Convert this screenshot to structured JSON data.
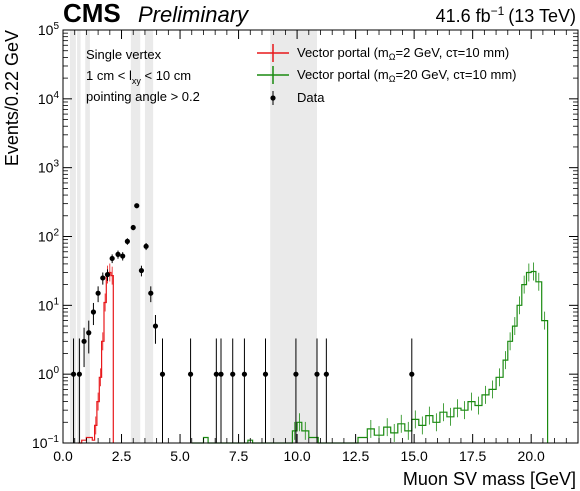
{
  "header": {
    "experiment": "CMS",
    "status": "Preliminary",
    "luminosity": "41.6 fb",
    "luminosity_exp": "−1",
    "energy": "(13 TeV)"
  },
  "annotations": [
    "Single vertex",
    "1 cm < l",
    "xy",
    " < 10 cm",
    "pointing angle > 0.2"
  ],
  "legend": {
    "placement": "top-right",
    "entries": [
      {
        "label_pre": "Vector portal (m",
        "label_sub": "Ω",
        "label_post": "=2 GeV, cτ=10 mm)",
        "color": "#e8181b"
      },
      {
        "label_pre": "Vector portal (m",
        "label_sub": "Ω",
        "label_post": "=20 GeV, cτ=10 mm)",
        "color": "#1a8a10"
      },
      {
        "label_pre": "Data",
        "label_sub": "",
        "label_post": "",
        "color": "#000000"
      }
    ]
  },
  "chart_data": {
    "type": "scatter",
    "xlabel": "Muon SV mass [GeV]",
    "ylabel": "Events/0.22 GeV",
    "xlim": [
      0,
      22
    ],
    "ylim": [
      0.1,
      100000
    ],
    "yscale": "log",
    "x_ticks": [
      "0.0",
      "2.5",
      "5.0",
      "7.5",
      "10.0",
      "12.5",
      "15.0",
      "17.5",
      "20.0"
    ],
    "x_tick_values": [
      0,
      2.5,
      5,
      7.5,
      10,
      12.5,
      15,
      17.5,
      20
    ],
    "y_ticks": [
      0.1,
      1,
      10,
      100,
      1000,
      10000,
      100000
    ],
    "y_tick_labels": [
      [
        "10",
        "−1"
      ],
      [
        "10",
        "0"
      ],
      [
        "10",
        "1"
      ],
      [
        "10",
        "2"
      ],
      [
        "10",
        "3"
      ],
      [
        "10",
        "4"
      ],
      [
        "10",
        "5"
      ]
    ],
    "vetoed_regions": [
      [
        0.3,
        0.55
      ],
      [
        0.6,
        0.75
      ],
      [
        0.95,
        1.15
      ],
      [
        2.9,
        3.3
      ],
      [
        3.5,
        3.85
      ],
      [
        8.85,
        10.85
      ]
    ],
    "series": [
      {
        "name": "Data",
        "color": "#000000",
        "points": [
          {
            "x": 0.45,
            "y": 1
          },
          {
            "x": 0.7,
            "y": 1
          },
          {
            "x": 0.9,
            "y": 3
          },
          {
            "x": 1.1,
            "y": 4
          },
          {
            "x": 1.3,
            "y": 8
          },
          {
            "x": 1.5,
            "y": 15
          },
          {
            "x": 1.7,
            "y": 25
          },
          {
            "x": 1.9,
            "y": 28
          },
          {
            "x": 2.1,
            "y": 48
          },
          {
            "x": 2.35,
            "y": 55
          },
          {
            "x": 2.55,
            "y": 52
          },
          {
            "x": 2.75,
            "y": 85
          },
          {
            "x": 3.0,
            "y": 135
          },
          {
            "x": 3.15,
            "y": 280
          },
          {
            "x": 3.35,
            "y": 32
          },
          {
            "x": 3.55,
            "y": 72
          },
          {
            "x": 3.75,
            "y": 15
          },
          {
            "x": 3.95,
            "y": 5
          },
          {
            "x": 4.25,
            "y": 1
          },
          {
            "x": 5.45,
            "y": 1
          },
          {
            "x": 6.55,
            "y": 1
          },
          {
            "x": 6.75,
            "y": 1
          },
          {
            "x": 7.25,
            "y": 1
          },
          {
            "x": 7.75,
            "y": 1
          },
          {
            "x": 8.65,
            "y": 1
          },
          {
            "x": 9.95,
            "y": 1
          },
          {
            "x": 10.85,
            "y": 1
          },
          {
            "x": 11.25,
            "y": 1
          },
          {
            "x": 14.9,
            "y": 1
          }
        ]
      },
      {
        "name": "Vector portal (mΩ=2 GeV, cτ=10 mm)",
        "color": "#e8181b",
        "step": [
          [
            0.65,
            0.1
          ],
          [
            0.8,
            0.11
          ],
          [
            1.0,
            0.12
          ],
          [
            1.25,
            0.11
          ],
          [
            1.35,
            0.18
          ],
          [
            1.45,
            0.4
          ],
          [
            1.55,
            0.9
          ],
          [
            1.65,
            3.0
          ],
          [
            1.75,
            11
          ],
          [
            1.85,
            28
          ],
          [
            1.95,
            30
          ],
          [
            2.05,
            27
          ],
          [
            2.15,
            0.1
          ]
        ]
      },
      {
        "name": "Vector portal (mΩ=20 GeV, cτ=10 mm)",
        "color": "#1a8a10",
        "step": [
          [
            5.5,
            0.1
          ],
          [
            6.0,
            0.12
          ],
          [
            6.2,
            0.1
          ],
          [
            7.9,
            0.11
          ],
          [
            8.1,
            0.1
          ],
          [
            9.8,
            0.15
          ],
          [
            10.0,
            0.2
          ],
          [
            10.2,
            0.15
          ],
          [
            10.5,
            0.12
          ],
          [
            10.9,
            0.1
          ],
          [
            12.6,
            0.12
          ],
          [
            13.0,
            0.16
          ],
          [
            13.3,
            0.13
          ],
          [
            13.7,
            0.17
          ],
          [
            14.0,
            0.14
          ],
          [
            14.3,
            0.19
          ],
          [
            14.6,
            0.15
          ],
          [
            14.9,
            0.22
          ],
          [
            15.2,
            0.18
          ],
          [
            15.5,
            0.25
          ],
          [
            15.8,
            0.2
          ],
          [
            16.1,
            0.28
          ],
          [
            16.4,
            0.24
          ],
          [
            16.7,
            0.32
          ],
          [
            17.0,
            0.3
          ],
          [
            17.3,
            0.4
          ],
          [
            17.6,
            0.35
          ],
          [
            17.9,
            0.5
          ],
          [
            18.2,
            0.6
          ],
          [
            18.5,
            0.9
          ],
          [
            18.8,
            1.6
          ],
          [
            19.0,
            3.0
          ],
          [
            19.2,
            5.0
          ],
          [
            19.4,
            10
          ],
          [
            19.6,
            20
          ],
          [
            19.8,
            30
          ],
          [
            20.0,
            31
          ],
          [
            20.2,
            22
          ],
          [
            20.45,
            6
          ],
          [
            20.7,
            0.1
          ]
        ]
      }
    ]
  }
}
